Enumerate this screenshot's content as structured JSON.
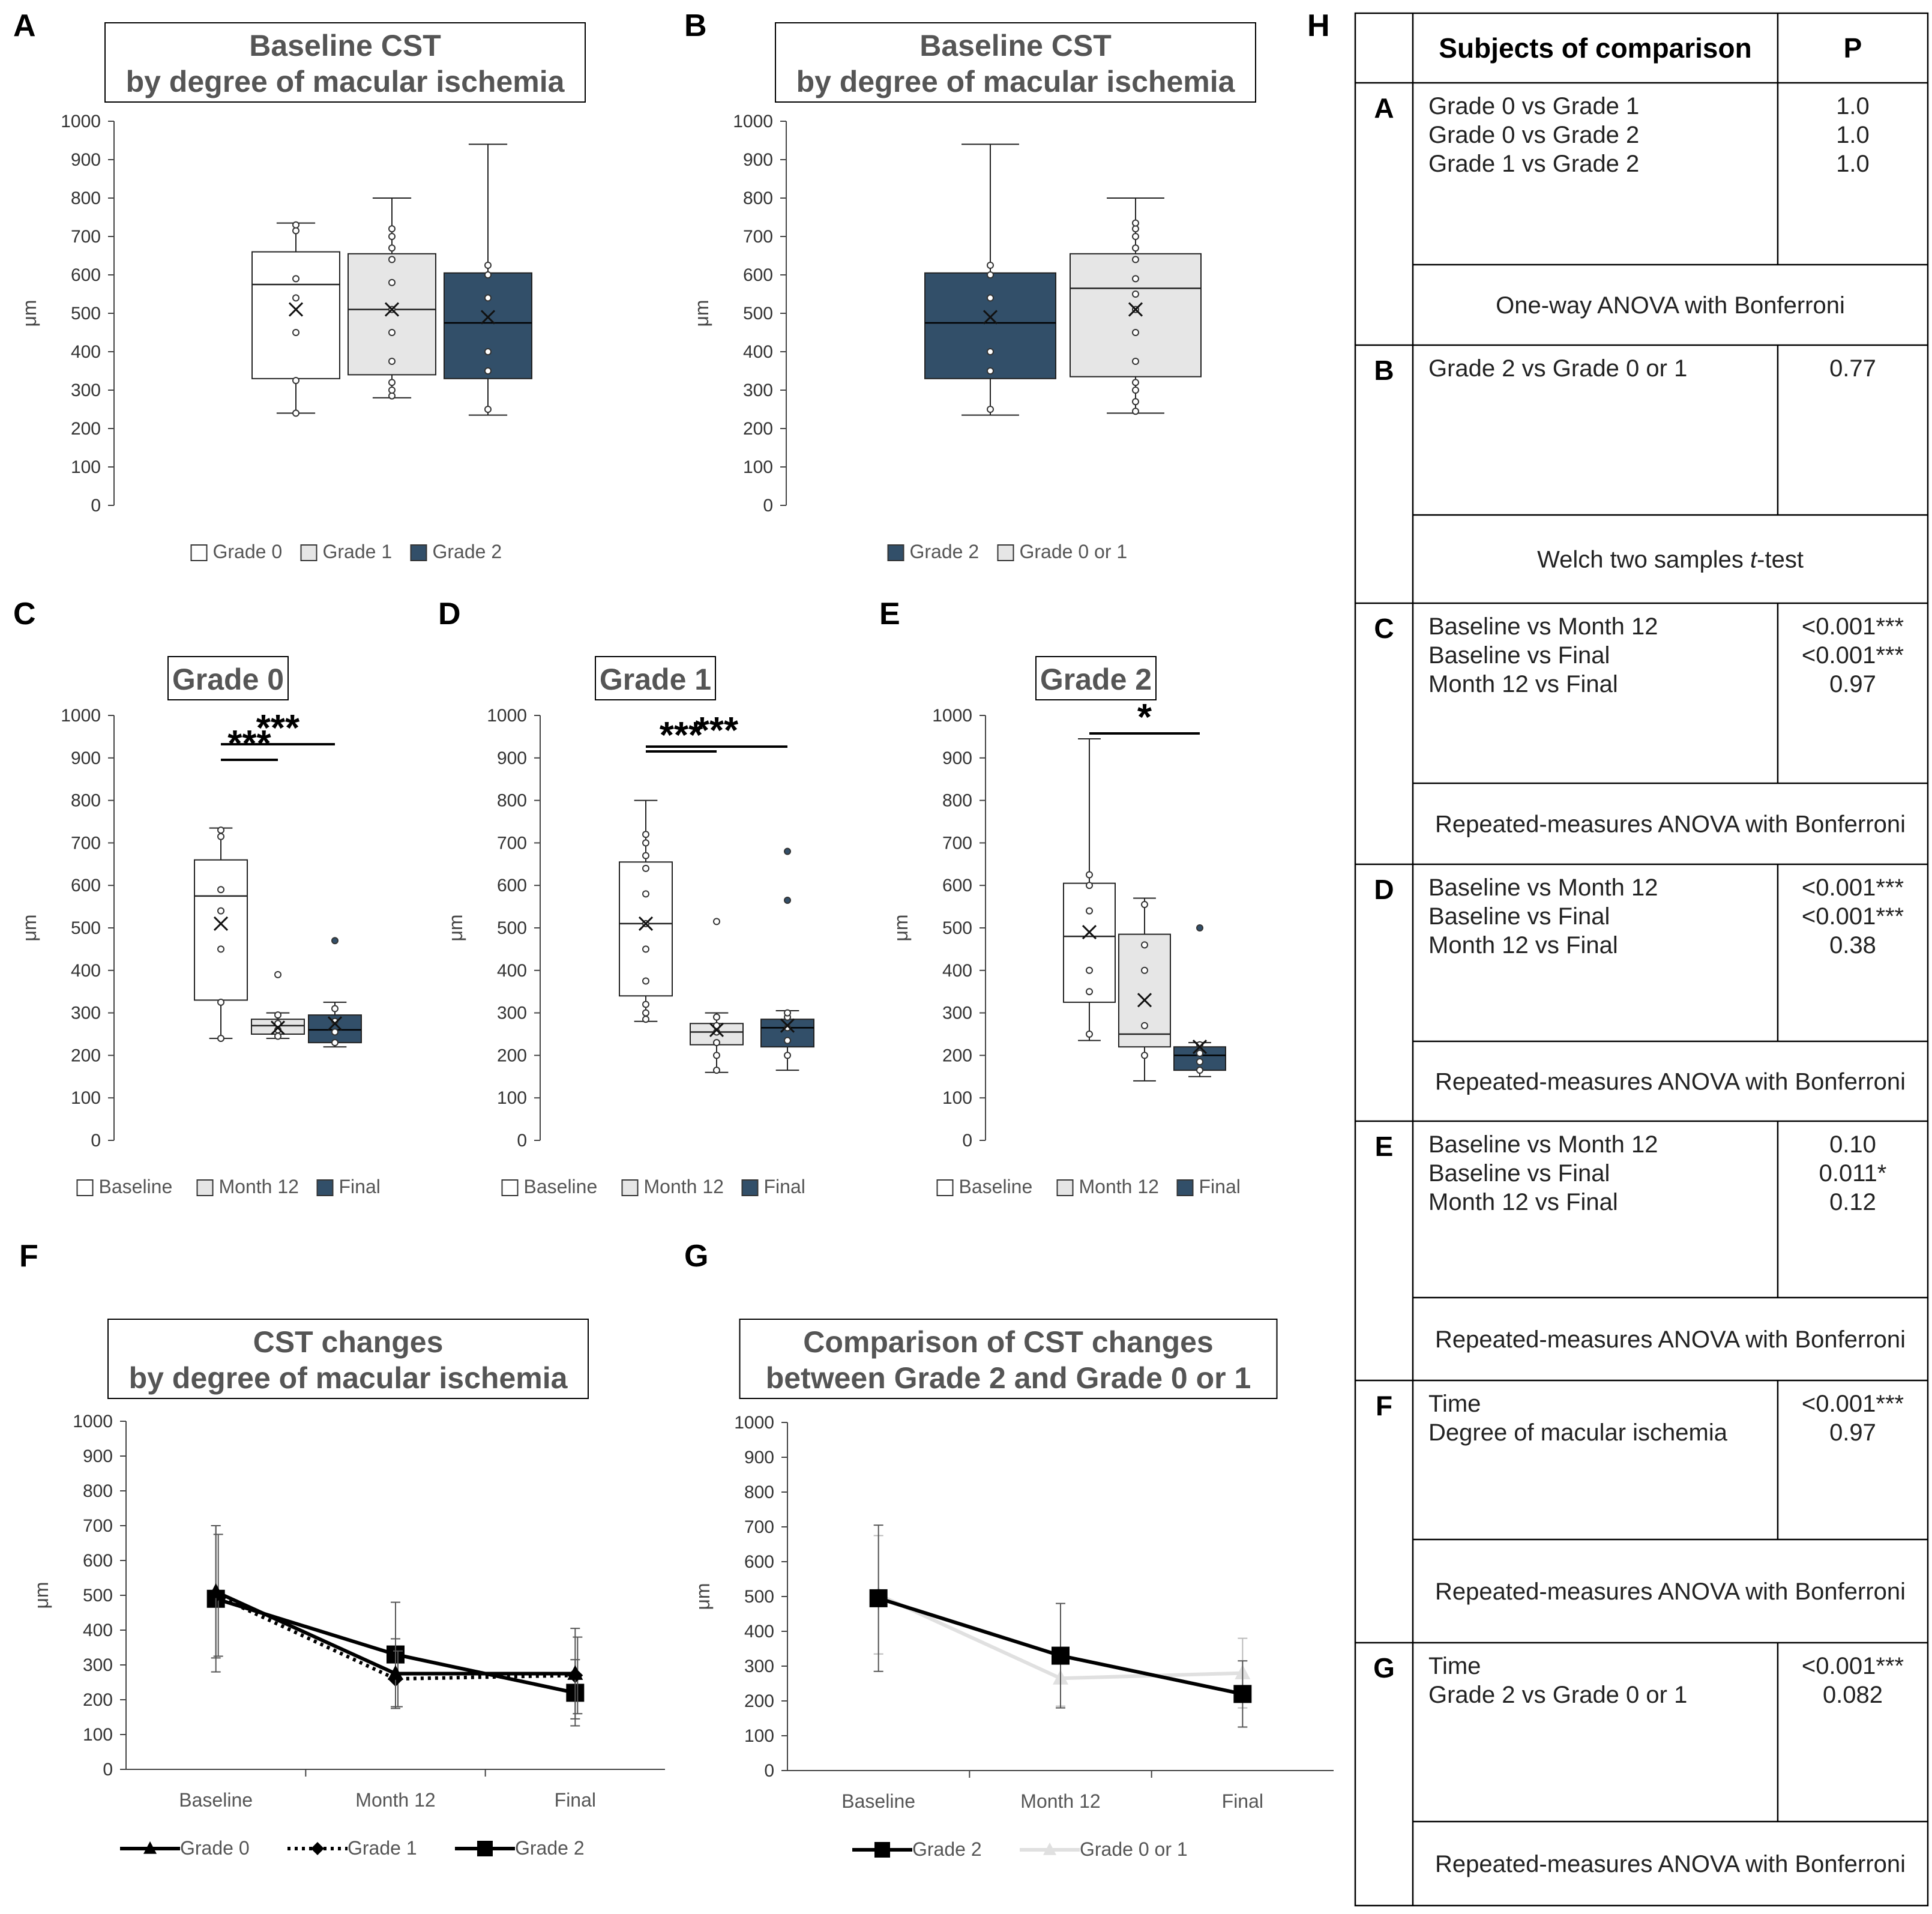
{
  "colors": {
    "g0": "#ffffff",
    "g1": "#e6e6e6",
    "g2": "#324f69",
    "gray": "#555555",
    "line_g01": "#e0e0e0"
  },
  "panel_letters": {
    "a": "A",
    "b": "B",
    "c": "C",
    "d": "D",
    "e": "E",
    "f": "F",
    "g": "G",
    "h": "H"
  },
  "unit": "μm",
  "chart_data": [
    {
      "id": "A",
      "type": "box",
      "title": [
        "Baseline CST",
        "by degree of macular ischemia"
      ],
      "ylabel": "μm",
      "ylim": [
        0,
        1000
      ],
      "yticks": [
        "0",
        "100",
        "200",
        "300",
        "400",
        "500",
        "600",
        "700",
        "800",
        "900",
        "1000"
      ],
      "legend": [
        "Grade 0",
        "Grade 1",
        "Grade 2"
      ],
      "series": [
        {
          "name": "Grade 0",
          "color": "g0",
          "min": 240,
          "q1": 330,
          "median": 575,
          "q3": 660,
          "max": 735,
          "mean": 510,
          "points": [
            240,
            325,
            450,
            540,
            590,
            715,
            730
          ]
        },
        {
          "name": "Grade 1",
          "color": "g1",
          "min": 280,
          "q1": 340,
          "median": 510,
          "q3": 655,
          "max": 800,
          "mean": 510,
          "points": [
            285,
            300,
            320,
            375,
            450,
            510,
            580,
            640,
            670,
            700,
            720
          ]
        },
        {
          "name": "Grade 2",
          "color": "g2",
          "min": 235,
          "q1": 330,
          "median": 475,
          "q3": 605,
          "max": 940,
          "mean": 490,
          "points": [
            250,
            350,
            400,
            540,
            600,
            625
          ]
        }
      ]
    },
    {
      "id": "B",
      "type": "box",
      "title": [
        "Baseline CST",
        "by degree of macular ischemia"
      ],
      "ylabel": "μm",
      "ylim": [
        0,
        1000
      ],
      "yticks": [
        "0",
        "100",
        "200",
        "300",
        "400",
        "500",
        "600",
        "700",
        "800",
        "900",
        "1000"
      ],
      "legend": [
        "Grade 2",
        "Grade 0 or 1"
      ],
      "series": [
        {
          "name": "Grade 2",
          "color": "g2",
          "min": 235,
          "q1": 330,
          "median": 475,
          "q3": 605,
          "max": 940,
          "mean": 490,
          "points": [
            250,
            350,
            400,
            540,
            600,
            625
          ]
        },
        {
          "name": "Grade 0 or 1",
          "color": "g1",
          "min": 240,
          "q1": 335,
          "median": 565,
          "q3": 655,
          "max": 800,
          "mean": 510,
          "points": [
            245,
            270,
            300,
            320,
            375,
            450,
            510,
            550,
            590,
            640,
            670,
            700,
            720,
            735
          ]
        }
      ]
    },
    {
      "id": "C",
      "type": "box",
      "title": [
        "Grade 0"
      ],
      "ylabel": "μm",
      "ylim": [
        0,
        1000
      ],
      "yticks": [
        "0",
        "100",
        "200",
        "300",
        "400",
        "500",
        "600",
        "700",
        "800",
        "900",
        "1000"
      ],
      "legend": [
        "Baseline",
        "Month 12",
        "Final"
      ],
      "significance": [
        {
          "from": 0,
          "to": 1,
          "label": "***"
        },
        {
          "from": 0,
          "to": 2,
          "label": "***"
        }
      ],
      "series": [
        {
          "name": "Baseline",
          "color": "g0",
          "min": 240,
          "q1": 330,
          "median": 575,
          "q3": 660,
          "max": 735,
          "mean": 510,
          "points": [
            240,
            325,
            450,
            540,
            590,
            715,
            730
          ]
        },
        {
          "name": "Month 12",
          "color": "g1",
          "min": 240,
          "q1": 250,
          "median": 270,
          "q3": 285,
          "max": 300,
          "mean": 265,
          "points": [
            245,
            260,
            275,
            295,
            390
          ]
        },
        {
          "name": "Final",
          "color": "g2",
          "min": 220,
          "q1": 230,
          "median": 260,
          "q3": 295,
          "max": 325,
          "mean": 275,
          "points": [
            230,
            255,
            280,
            310,
            470
          ]
        }
      ]
    },
    {
      "id": "D",
      "type": "box",
      "title": [
        "Grade 1"
      ],
      "ylabel": "μm",
      "ylim": [
        0,
        1000
      ],
      "yticks": [
        "0",
        "100",
        "200",
        "300",
        "400",
        "500",
        "600",
        "700",
        "800",
        "900",
        "1000"
      ],
      "legend": [
        "Baseline",
        "Month 12",
        "Final"
      ],
      "significance": [
        {
          "from": 0,
          "to": 1,
          "label": "***"
        },
        {
          "from": 0,
          "to": 2,
          "label": "***"
        }
      ],
      "series": [
        {
          "name": "Baseline",
          "color": "g0",
          "min": 280,
          "q1": 340,
          "median": 510,
          "q3": 655,
          "max": 800,
          "mean": 510,
          "points": [
            285,
            300,
            320,
            375,
            450,
            510,
            580,
            640,
            670,
            700,
            720
          ]
        },
        {
          "name": "Month 12",
          "color": "g1",
          "min": 160,
          "q1": 225,
          "median": 255,
          "q3": 275,
          "max": 300,
          "mean": 260,
          "points": [
            165,
            200,
            230,
            255,
            270,
            290,
            515
          ]
        },
        {
          "name": "Final",
          "color": "g2",
          "min": 165,
          "q1": 220,
          "median": 265,
          "q3": 285,
          "max": 305,
          "mean": 270,
          "points": [
            200,
            235,
            265,
            290,
            300,
            565,
            680
          ]
        }
      ]
    },
    {
      "id": "E",
      "type": "box",
      "title": [
        "Grade 2"
      ],
      "ylabel": "μm",
      "ylim": [
        0,
        1000
      ],
      "yticks": [
        "0",
        "100",
        "200",
        "300",
        "400",
        "500",
        "600",
        "700",
        "800",
        "900",
        "1000"
      ],
      "legend": [
        "Baseline",
        "Month 12",
        "Final"
      ],
      "significance": [
        {
          "from": 0,
          "to": 2,
          "label": "*"
        }
      ],
      "series": [
        {
          "name": "Baseline",
          "color": "g0",
          "min": 235,
          "q1": 325,
          "median": 480,
          "q3": 605,
          "max": 945,
          "mean": 490,
          "points": [
            250,
            350,
            400,
            540,
            600,
            625
          ]
        },
        {
          "name": "Month 12",
          "color": "g1",
          "min": 140,
          "q1": 220,
          "median": 250,
          "q3": 485,
          "max": 570,
          "mean": 330,
          "points": [
            200,
            270,
            400,
            460,
            555
          ]
        },
        {
          "name": "Final",
          "color": "g2",
          "min": 150,
          "q1": 165,
          "median": 200,
          "q3": 220,
          "max": 230,
          "mean": 220,
          "points": [
            165,
            185,
            205,
            225,
            500
          ]
        }
      ]
    },
    {
      "id": "F",
      "type": "line",
      "title": [
        "CST changes",
        "by degree of macular ischemia"
      ],
      "ylabel": "μm",
      "ylim": [
        0,
        1000
      ],
      "yticks": [
        "0",
        "100",
        "200",
        "300",
        "400",
        "500",
        "600",
        "700",
        "800",
        "900",
        "1000"
      ],
      "categories": [
        "Baseline",
        "Month 12",
        "Final"
      ],
      "series": [
        {
          "name": "Grade 0",
          "style": "solid",
          "marker": "triangle",
          "values": [
            510,
            275,
            275
          ],
          "errors": [
            190,
            100,
            130
          ]
        },
        {
          "name": "Grade 1",
          "style": "dotted",
          "marker": "diamond",
          "values": [
            500,
            260,
            270
          ],
          "errors": [
            175,
            80,
            110
          ]
        },
        {
          "name": "Grade 2",
          "style": "solid",
          "marker": "square",
          "values": [
            490,
            330,
            220
          ],
          "errors": [
            210,
            150,
            95
          ]
        }
      ]
    },
    {
      "id": "G",
      "type": "line",
      "title": [
        "Comparison of CST changes",
        "between Grade 2 and Grade 0 or 1"
      ],
      "ylabel": "μm",
      "ylim": [
        0,
        1000
      ],
      "yticks": [
        "0",
        "100",
        "200",
        "300",
        "400",
        "500",
        "600",
        "700",
        "800",
        "900",
        "1000"
      ],
      "categories": [
        "Baseline",
        "Month 12",
        "Final"
      ],
      "series": [
        {
          "name": "Grade 2",
          "style": "solid",
          "marker": "square",
          "values": [
            495,
            330,
            220
          ],
          "errors": [
            210,
            150,
            95
          ]
        },
        {
          "name": "Grade 0 or 1",
          "style": "light",
          "marker": "triangle",
          "values": [
            505,
            265,
            280
          ],
          "errors": [
            170,
            80,
            100
          ]
        }
      ]
    },
    {
      "id": "H",
      "type": "table",
      "headers": [
        "Subjects of comparison",
        "P"
      ],
      "rows": [
        {
          "letter": "A",
          "comparisons": [
            "Grade 0 vs Grade 1",
            "Grade 0 vs Grade 2",
            "Grade 1 vs Grade 2"
          ],
          "p": [
            "1.0",
            "1.0",
            "1.0"
          ],
          "method": "One-way ANOVA with Bonferroni"
        },
        {
          "letter": "B",
          "comparisons": [
            "Grade 2 vs Grade 0 or 1"
          ],
          "p": [
            "0.77"
          ],
          "method_pre": "Welch two samples ",
          "method_italic": "t",
          "method_post": "-test"
        },
        {
          "letter": "C",
          "comparisons": [
            "Baseline vs Month  12",
            "Baseline vs Final",
            "Month  12 vs Final"
          ],
          "p": [
            "<0.001***",
            "<0.001***",
            "0.97"
          ],
          "method": "Repeated-measures ANOVA with Bonferroni"
        },
        {
          "letter": "D",
          "comparisons": [
            "Baseline vs Month  12",
            "Baseline vs Final",
            "Month  12 vs Final"
          ],
          "p": [
            "<0.001***",
            "<0.001***",
            "0.38"
          ],
          "method": "Repeated-measures ANOVA with Bonferroni"
        },
        {
          "letter": "E",
          "comparisons": [
            "Baseline vs Month  12",
            "Baseline vs Final",
            "Month  12 vs Final"
          ],
          "p": [
            "0.10",
            "0.011*",
            "0.12"
          ],
          "method": "Repeated-measures ANOVA with Bonferroni"
        },
        {
          "letter": "F",
          "comparisons": [
            "Time",
            "Degree of macular  ischemia"
          ],
          "p": [
            "<0.001***",
            "0.97"
          ],
          "method": "Repeated-measures ANOVA with Bonferroni"
        },
        {
          "letter": "G",
          "comparisons": [
            "Time",
            "Grade 2 vs Grade 0 or 1"
          ],
          "p": [
            "<0.001***",
            "0.082"
          ],
          "method": "Repeated-measures ANOVA with Bonferroni"
        }
      ]
    }
  ]
}
